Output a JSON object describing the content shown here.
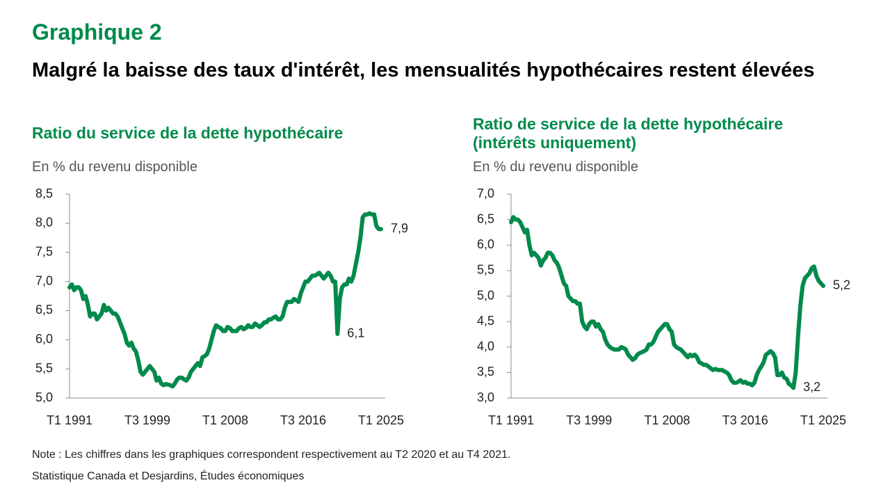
{
  "header": {
    "kicker": "Graphique 2",
    "title": "Malgré la baisse des taux d'intérêt, les mensualités hypothécaires restent élevées"
  },
  "chart_data": [
    {
      "type": "line",
      "title": "Ratio du service de la dette hypothécaire",
      "subtitle": "En % du revenu disponible",
      "color": "#008a4b",
      "categories": [
        "T1 1991",
        null,
        null,
        null,
        null,
        null,
        null,
        null,
        null,
        null,
        null,
        null,
        null,
        null,
        null,
        null,
        null,
        null,
        null,
        null,
        null,
        null,
        null,
        null,
        null,
        null,
        null,
        null,
        null,
        null,
        null,
        null,
        null,
        null,
        "T3 1999",
        null,
        null,
        null,
        null,
        null,
        null,
        null,
        null,
        null,
        null,
        null,
        null,
        null,
        null,
        null,
        null,
        null,
        null,
        null,
        null,
        null,
        null,
        null,
        null,
        null,
        null,
        null,
        null,
        null,
        null,
        null,
        null,
        null,
        "T1 2008",
        null,
        null,
        null,
        null,
        null,
        null,
        null,
        null,
        null,
        null,
        null,
        null,
        null,
        null,
        null,
        null,
        null,
        null,
        null,
        null,
        null,
        null,
        null,
        null,
        null,
        null,
        null,
        null,
        null,
        null,
        null,
        null,
        null,
        "T3 2016",
        null,
        null,
        null,
        null,
        null,
        null,
        null,
        null,
        null,
        null,
        null,
        null,
        null,
        null,
        null,
        null,
        null,
        null,
        null,
        null,
        null,
        null,
        null,
        null,
        null,
        null,
        null,
        null,
        null,
        null,
        null,
        null,
        null,
        "T1 2025"
      ],
      "values": [
        6.9,
        6.95,
        6.85,
        6.9,
        6.9,
        6.85,
        6.7,
        6.75,
        6.6,
        6.4,
        6.45,
        6.45,
        6.35,
        6.4,
        6.45,
        6.6,
        6.5,
        6.55,
        6.5,
        6.45,
        6.45,
        6.4,
        6.3,
        6.2,
        6.1,
        5.95,
        5.9,
        5.95,
        5.85,
        5.8,
        5.65,
        5.45,
        5.4,
        5.45,
        5.5,
        5.55,
        5.5,
        5.45,
        5.3,
        5.35,
        5.25,
        5.22,
        5.24,
        5.23,
        5.22,
        5.2,
        5.25,
        5.32,
        5.35,
        5.35,
        5.32,
        5.3,
        5.35,
        5.45,
        5.5,
        5.55,
        5.6,
        5.55,
        5.7,
        5.72,
        5.75,
        5.85,
        6.0,
        6.15,
        6.25,
        6.22,
        6.2,
        6.15,
        6.15,
        6.22,
        6.2,
        6.15,
        6.15,
        6.15,
        6.2,
        6.22,
        6.18,
        6.2,
        6.25,
        6.22,
        6.22,
        6.28,
        6.25,
        6.22,
        6.25,
        6.3,
        6.3,
        6.35,
        6.35,
        6.38,
        6.4,
        6.35,
        6.35,
        6.4,
        6.55,
        6.65,
        6.65,
        6.65,
        6.7,
        6.68,
        6.65,
        6.8,
        6.9,
        7.0,
        7.0,
        7.05,
        7.1,
        7.1,
        7.12,
        7.15,
        7.1,
        7.05,
        7.1,
        7.15,
        7.1,
        7.0,
        7.0,
        6.1,
        6.7,
        6.9,
        6.95,
        6.95,
        7.05,
        7.0,
        7.1,
        7.3,
        7.5,
        7.75,
        8.1,
        8.15,
        8.15,
        8.17,
        8.15,
        8.15,
        7.95,
        7.9,
        7.9
      ],
      "value_labels": [
        null,
        null,
        null,
        null,
        null,
        null,
        null,
        null,
        null,
        null,
        null,
        null,
        null,
        null,
        null,
        null,
        null,
        null,
        null,
        null,
        null,
        null,
        null,
        null,
        null,
        null,
        null,
        null,
        null,
        null,
        null,
        null,
        null,
        null,
        null,
        null,
        null,
        null,
        null,
        null,
        null,
        null,
        null,
        null,
        null,
        null,
        null,
        null,
        null,
        null,
        null,
        null,
        null,
        null,
        null,
        null,
        null,
        null,
        null,
        null,
        null,
        null,
        null,
        null,
        null,
        null,
        null,
        null,
        null,
        null,
        null,
        null,
        null,
        null,
        null,
        null,
        null,
        null,
        null,
        null,
        null,
        null,
        null,
        null,
        null,
        null,
        null,
        null,
        null,
        null,
        null,
        null,
        null,
        null,
        null,
        null,
        null,
        null,
        null,
        null,
        null,
        null,
        null,
        null,
        null,
        null,
        null,
        null,
        null,
        null,
        null,
        null,
        null,
        null,
        null,
        null,
        null,
        "6,1",
        null,
        null,
        null,
        null,
        null,
        null,
        null,
        null,
        null,
        null,
        null,
        null,
        null,
        null,
        null,
        null,
        null,
        null,
        "7,9"
      ],
      "ylim": [
        5.0,
        8.5
      ],
      "yticks": [
        {
          "value": 5.0,
          "label": "5,0"
        },
        {
          "value": 5.5,
          "label": "5,5"
        },
        {
          "value": 6.0,
          "label": "6,0"
        },
        {
          "value": 6.5,
          "label": "6,5"
        },
        {
          "value": 7.0,
          "label": "7,0"
        },
        {
          "value": 7.5,
          "label": "7,5"
        },
        {
          "value": 8.0,
          "label": "8,0"
        },
        {
          "value": 8.5,
          "label": "8,5"
        }
      ],
      "grid": false
    },
    {
      "type": "line",
      "title": "Ratio de service de la dette hypothécaire (intérêts uniquement)",
      "subtitle": "En % du revenu disponible",
      "color": "#008a4b",
      "categories": [
        "T1 1991",
        null,
        null,
        null,
        null,
        null,
        null,
        null,
        null,
        null,
        null,
        null,
        null,
        null,
        null,
        null,
        null,
        null,
        null,
        null,
        null,
        null,
        null,
        null,
        null,
        null,
        null,
        null,
        null,
        null,
        null,
        null,
        null,
        null,
        "T3 1999",
        null,
        null,
        null,
        null,
        null,
        null,
        null,
        null,
        null,
        null,
        null,
        null,
        null,
        null,
        null,
        null,
        null,
        null,
        null,
        null,
        null,
        null,
        null,
        null,
        null,
        null,
        null,
        null,
        null,
        null,
        null,
        null,
        null,
        "T1 2008",
        null,
        null,
        null,
        null,
        null,
        null,
        null,
        null,
        null,
        null,
        null,
        null,
        null,
        null,
        null,
        null,
        null,
        null,
        null,
        null,
        null,
        null,
        null,
        null,
        null,
        null,
        null,
        null,
        null,
        null,
        null,
        null,
        null,
        "T3 2016",
        null,
        null,
        null,
        null,
        null,
        null,
        null,
        null,
        null,
        null,
        null,
        null,
        null,
        null,
        null,
        null,
        null,
        null,
        null,
        null,
        null,
        null,
        null,
        null,
        null,
        null,
        null,
        null,
        null,
        null,
        null,
        null,
        null,
        "T1 2025"
      ],
      "values": [
        6.45,
        6.55,
        6.5,
        6.5,
        6.45,
        6.35,
        6.25,
        6.3,
        6.0,
        5.8,
        5.85,
        5.8,
        5.75,
        5.6,
        5.7,
        5.75,
        5.85,
        5.85,
        5.8,
        5.7,
        5.65,
        5.55,
        5.4,
        5.25,
        5.2,
        5.0,
        4.95,
        4.9,
        4.9,
        4.85,
        4.85,
        4.5,
        4.4,
        4.35,
        4.45,
        4.5,
        4.5,
        4.4,
        4.45,
        4.35,
        4.3,
        4.15,
        4.05,
        4.0,
        3.97,
        3.95,
        3.95,
        3.95,
        4.0,
        3.98,
        3.95,
        3.85,
        3.8,
        3.75,
        3.78,
        3.85,
        3.88,
        3.9,
        3.92,
        3.95,
        4.05,
        4.05,
        4.1,
        4.2,
        4.3,
        4.35,
        4.4,
        4.45,
        4.45,
        4.35,
        4.3,
        4.05,
        4.0,
        3.97,
        3.95,
        3.9,
        3.85,
        3.8,
        3.85,
        3.82,
        3.85,
        3.8,
        3.7,
        3.68,
        3.65,
        3.65,
        3.62,
        3.58,
        3.55,
        3.57,
        3.55,
        3.55,
        3.55,
        3.52,
        3.5,
        3.45,
        3.35,
        3.3,
        3.3,
        3.32,
        3.35,
        3.3,
        3.32,
        3.28,
        3.28,
        3.25,
        3.3,
        3.45,
        3.55,
        3.62,
        3.7,
        3.85,
        3.88,
        3.92,
        3.88,
        3.8,
        3.45,
        3.45,
        3.5,
        3.4,
        3.38,
        3.28,
        3.25,
        3.2,
        3.5,
        4.2,
        4.8,
        5.2,
        5.35,
        5.4,
        5.45,
        5.55,
        5.58,
        5.4,
        5.3,
        5.25,
        5.2
      ],
      "value_labels": [
        null,
        null,
        null,
        null,
        null,
        null,
        null,
        null,
        null,
        null,
        null,
        null,
        null,
        null,
        null,
        null,
        null,
        null,
        null,
        null,
        null,
        null,
        null,
        null,
        null,
        null,
        null,
        null,
        null,
        null,
        null,
        null,
        null,
        null,
        null,
        null,
        null,
        null,
        null,
        null,
        null,
        null,
        null,
        null,
        null,
        null,
        null,
        null,
        null,
        null,
        null,
        null,
        null,
        null,
        null,
        null,
        null,
        null,
        null,
        null,
        null,
        null,
        null,
        null,
        null,
        null,
        null,
        null,
        null,
        null,
        null,
        null,
        null,
        null,
        null,
        null,
        null,
        null,
        null,
        null,
        null,
        null,
        null,
        null,
        null,
        null,
        null,
        null,
        null,
        null,
        null,
        null,
        null,
        null,
        null,
        null,
        null,
        null,
        null,
        null,
        null,
        null,
        null,
        null,
        null,
        null,
        null,
        null,
        null,
        null,
        null,
        null,
        null,
        null,
        null,
        null,
        null,
        null,
        null,
        null,
        null,
        null,
        null,
        "3,2",
        null,
        null,
        null,
        null,
        null,
        null,
        null,
        null,
        null,
        null,
        null,
        null,
        "5,2"
      ],
      "ylim": [
        3.0,
        7.0
      ],
      "yticks": [
        {
          "value": 3.0,
          "label": "3,0"
        },
        {
          "value": 3.5,
          "label": "3,5"
        },
        {
          "value": 4.0,
          "label": "4,0"
        },
        {
          "value": 4.5,
          "label": "4,5"
        },
        {
          "value": 5.0,
          "label": "5,0"
        },
        {
          "value": 5.5,
          "label": "5,5"
        },
        {
          "value": 6.0,
          "label": "6,0"
        },
        {
          "value": 6.5,
          "label": "6,5"
        },
        {
          "value": 7.0,
          "label": "7,0"
        }
      ],
      "grid": false
    }
  ],
  "footer": {
    "note": "Note : Les chiffres dans les graphiques correspondent respectivement au T2 2020 et au T4 2021.",
    "source": "Statistique Canada et Desjardins, Études économiques"
  }
}
